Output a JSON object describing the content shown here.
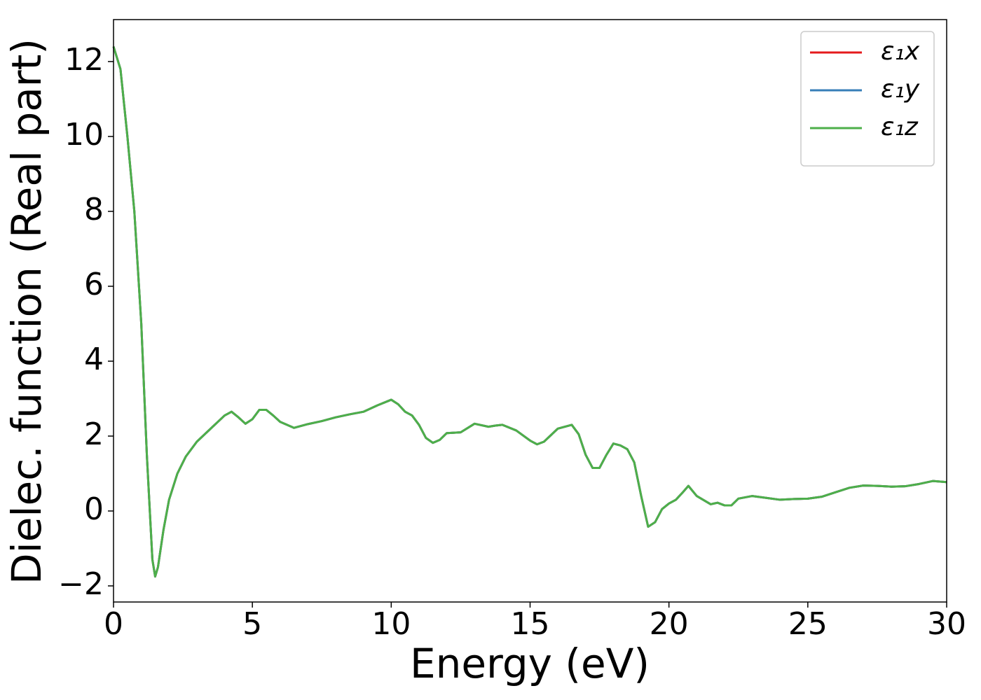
{
  "chart_data": {
    "type": "line",
    "xlabel": "Energy (eV)",
    "ylabel": "Dielec. function (Real part)",
    "x": [
      0,
      0.25,
      0.5,
      0.75,
      1,
      1.2,
      1.4,
      1.5,
      1.6,
      1.8,
      2,
      2.3,
      2.6,
      3,
      3.5,
      4,
      4.25,
      4.5,
      4.75,
      5,
      5.25,
      5.5,
      5.75,
      6,
      6.5,
      7,
      7.5,
      8,
      8.5,
      9,
      9.5,
      10,
      10.25,
      10.5,
      10.75,
      11,
      11.25,
      11.5,
      11.75,
      12,
      12.5,
      13,
      13.5,
      13.75,
      14,
      14.5,
      15,
      15.25,
      15.5,
      16,
      16.5,
      16.75,
      17,
      17.25,
      17.5,
      17.75,
      18,
      18.25,
      18.5,
      18.75,
      19,
      19.25,
      19.5,
      19.75,
      20,
      20.25,
      20.5,
      20.7,
      21,
      21.5,
      21.75,
      22,
      22.25,
      22.5,
      23,
      23.5,
      24,
      24.5,
      25,
      25.5,
      26,
      26.5,
      27,
      27.5,
      28,
      28.5,
      29,
      29.5,
      30
    ],
    "series": [
      {
        "name": "ε₁x",
        "color": "#e41a1c",
        "values": [
          12.4,
          11.8,
          10,
          8,
          5,
          1.5,
          -1.3,
          -1.75,
          -1.5,
          -0.5,
          0.3,
          1,
          1.45,
          1.85,
          2.2,
          2.55,
          2.65,
          2.5,
          2.33,
          2.45,
          2.7,
          2.7,
          2.55,
          2.38,
          2.22,
          2.32,
          2.4,
          2.5,
          2.58,
          2.65,
          2.82,
          2.97,
          2.85,
          2.65,
          2.55,
          2.3,
          1.95,
          1.82,
          1.9,
          2.08,
          2.1,
          2.33,
          2.25,
          2.28,
          2.3,
          2.15,
          1.88,
          1.78,
          1.85,
          2.2,
          2.3,
          2.05,
          1.5,
          1.15,
          1.15,
          1.5,
          1.8,
          1.75,
          1.65,
          1.3,
          0.4,
          -0.42,
          -0.3,
          0.05,
          0.2,
          0.3,
          0.5,
          0.67,
          0.4,
          0.18,
          0.22,
          0.15,
          0.15,
          0.33,
          0.4,
          0.35,
          0.3,
          0.32,
          0.33,
          0.38,
          0.5,
          0.62,
          0.68,
          0.67,
          0.65,
          0.66,
          0.72,
          0.8,
          0.77
        ]
      },
      {
        "name": "ε₁y",
        "color": "#377eb8",
        "values": [
          12.4,
          11.8,
          10,
          8,
          5,
          1.5,
          -1.3,
          -1.75,
          -1.5,
          -0.5,
          0.3,
          1,
          1.45,
          1.85,
          2.2,
          2.55,
          2.65,
          2.5,
          2.33,
          2.45,
          2.7,
          2.7,
          2.55,
          2.38,
          2.22,
          2.32,
          2.4,
          2.5,
          2.58,
          2.65,
          2.82,
          2.97,
          2.85,
          2.65,
          2.55,
          2.3,
          1.95,
          1.82,
          1.9,
          2.08,
          2.1,
          2.33,
          2.25,
          2.28,
          2.3,
          2.15,
          1.88,
          1.78,
          1.85,
          2.2,
          2.3,
          2.05,
          1.5,
          1.15,
          1.15,
          1.5,
          1.8,
          1.75,
          1.65,
          1.3,
          0.4,
          -0.42,
          -0.3,
          0.05,
          0.2,
          0.3,
          0.5,
          0.67,
          0.4,
          0.18,
          0.22,
          0.15,
          0.15,
          0.33,
          0.4,
          0.35,
          0.3,
          0.32,
          0.33,
          0.38,
          0.5,
          0.62,
          0.68,
          0.67,
          0.65,
          0.66,
          0.72,
          0.8,
          0.77
        ]
      },
      {
        "name": "ε₁z",
        "color": "#4daf4a",
        "values": [
          12.4,
          11.8,
          10,
          8,
          5,
          1.5,
          -1.3,
          -1.75,
          -1.5,
          -0.5,
          0.3,
          1,
          1.45,
          1.85,
          2.2,
          2.55,
          2.65,
          2.5,
          2.33,
          2.45,
          2.7,
          2.7,
          2.55,
          2.38,
          2.22,
          2.32,
          2.4,
          2.5,
          2.58,
          2.65,
          2.82,
          2.97,
          2.85,
          2.65,
          2.55,
          2.3,
          1.95,
          1.82,
          1.9,
          2.08,
          2.1,
          2.33,
          2.25,
          2.28,
          2.3,
          2.15,
          1.88,
          1.78,
          1.85,
          2.2,
          2.3,
          2.05,
          1.5,
          1.15,
          1.15,
          1.5,
          1.8,
          1.75,
          1.65,
          1.3,
          0.4,
          -0.42,
          -0.3,
          0.05,
          0.2,
          0.3,
          0.5,
          0.67,
          0.4,
          0.18,
          0.22,
          0.15,
          0.15,
          0.33,
          0.4,
          0.35,
          0.3,
          0.32,
          0.33,
          0.38,
          0.5,
          0.62,
          0.68,
          0.67,
          0.65,
          0.66,
          0.72,
          0.8,
          0.77
        ]
      }
    ],
    "xlim": [
      0,
      30
    ],
    "xticks": [
      0,
      5,
      10,
      15,
      20,
      25,
      30
    ],
    "ylim": [
      -2.43,
      13.12
    ],
    "yticks": [
      {
        "value": -2,
        "label": "−2"
      },
      0,
      2,
      4,
      6,
      8,
      10,
      12
    ],
    "grid": false,
    "legend": "upper right"
  }
}
